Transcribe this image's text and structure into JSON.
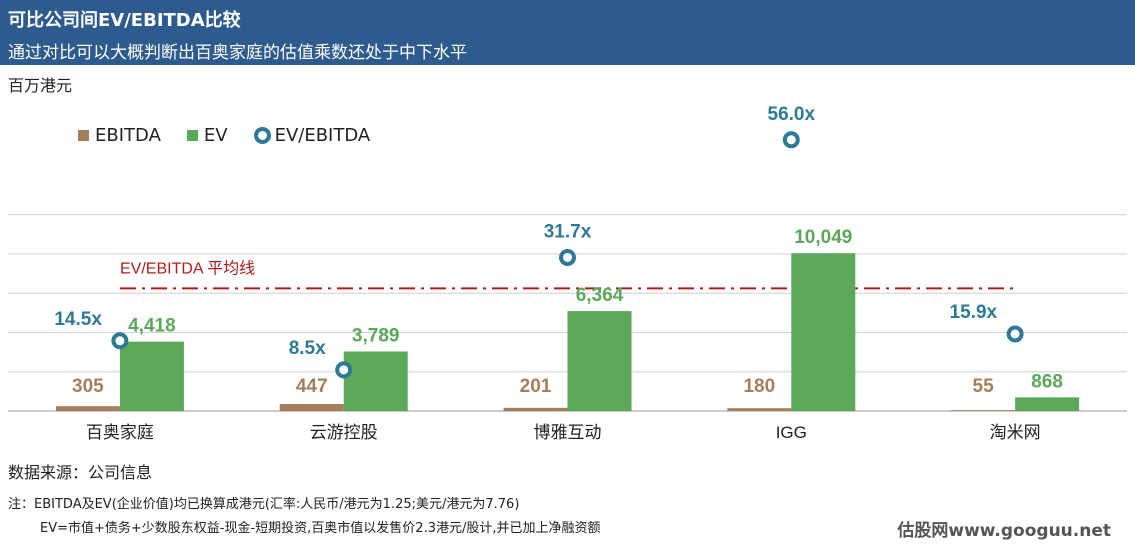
{
  "header": {
    "title": "可比公司间EV/EBITDA比较",
    "subtitle": "通过对比可以大概判断出百奥家庭的估值乘数还处于中下水平"
  },
  "unit_label": "百万港元",
  "legend": {
    "ebitda": "EBITDA",
    "ev": "EV",
    "ratio": "EV/EBITDA"
  },
  "colors": {
    "ebitda": "#a57f5c",
    "ev": "#5ba85b",
    "ratio": "#2e7a96",
    "average_line": "#b01c1c",
    "header": "#2e5b8e"
  },
  "chart_data": {
    "type": "bar",
    "categories": [
      "百奥家庭",
      "云游控股",
      "博雅互动",
      "IGG",
      "淘米网"
    ],
    "series": [
      {
        "name": "EBITDA",
        "values": [
          305,
          447,
          201,
          180,
          55
        ],
        "labels": [
          "305",
          "447",
          "201",
          "180",
          "55"
        ]
      },
      {
        "name": "EV",
        "values": [
          4418,
          3789,
          6364,
          10049,
          868
        ],
        "labels": [
          "4,418",
          "3,789",
          "6,364",
          "10,049",
          "868"
        ]
      }
    ],
    "ratio_series": {
      "name": "EV/EBITDA",
      "values": [
        14.5,
        8.5,
        31.7,
        56.0,
        15.9
      ],
      "labels": [
        "14.5x",
        "8.5x",
        "31.7x",
        "56.0x",
        "15.9x"
      ],
      "ylim": [
        0,
        70
      ]
    },
    "average_line_label": "EV/EBITDA 平均线",
    "ylim": [
      0,
      14000
    ],
    "grid": true,
    "legend_position": "top-left"
  },
  "source": "数据来源：公司信息",
  "notes": {
    "line1": "注：EBITDA及EV(企业价值)均已换算成港元(汇率:人民币/港元为1.25;美元/港元为7.76)",
    "line2": "EV=市值+债务+少数股东权益-现金-短期投资,百奥市值以发售价2.3港元/股计,并已加上净融资额"
  },
  "watermark": "估股网www.googuu.net"
}
